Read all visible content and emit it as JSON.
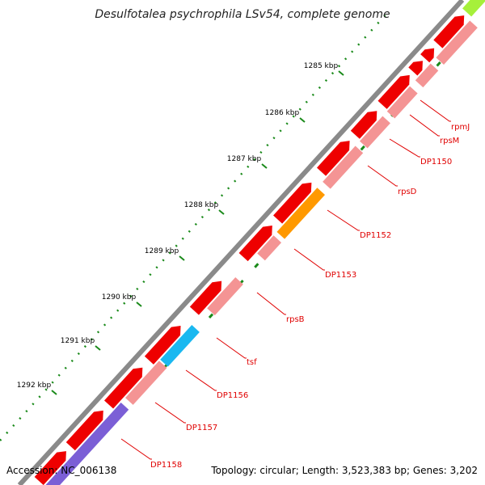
{
  "title": "Desulfotalea psychrophila LSv54, complete genome",
  "footer": {
    "accession": "Accession: NC_006138",
    "summary": "Topology: circular; Length: 3,523,383 bp; Genes: 3,202"
  },
  "ticks": [
    "1285 kbp",
    "1286 kbp",
    "1287 kbp",
    "1288 kbp",
    "1289 kbp",
    "1290 kbp",
    "1291 kbp",
    "1292 kbp"
  ],
  "gene_labels": [
    "rpmJ",
    "rpsM",
    "DP1150",
    "rpsD",
    "DP1152",
    "DP1153",
    "rpsB",
    "tsf",
    "DP1156",
    "DP1157",
    "DP1158"
  ],
  "colors": {
    "backbone": "#8a8a8a",
    "gene_red": "#ee0000",
    "gene_pink": "#f49494",
    "orange": "#ff9900",
    "cyan": "#1ab8f0",
    "purple": "#7b5fd6",
    "lime": "#a6f03a",
    "tick_green": "#1a8a1a",
    "label_red": "#e00000"
  }
}
